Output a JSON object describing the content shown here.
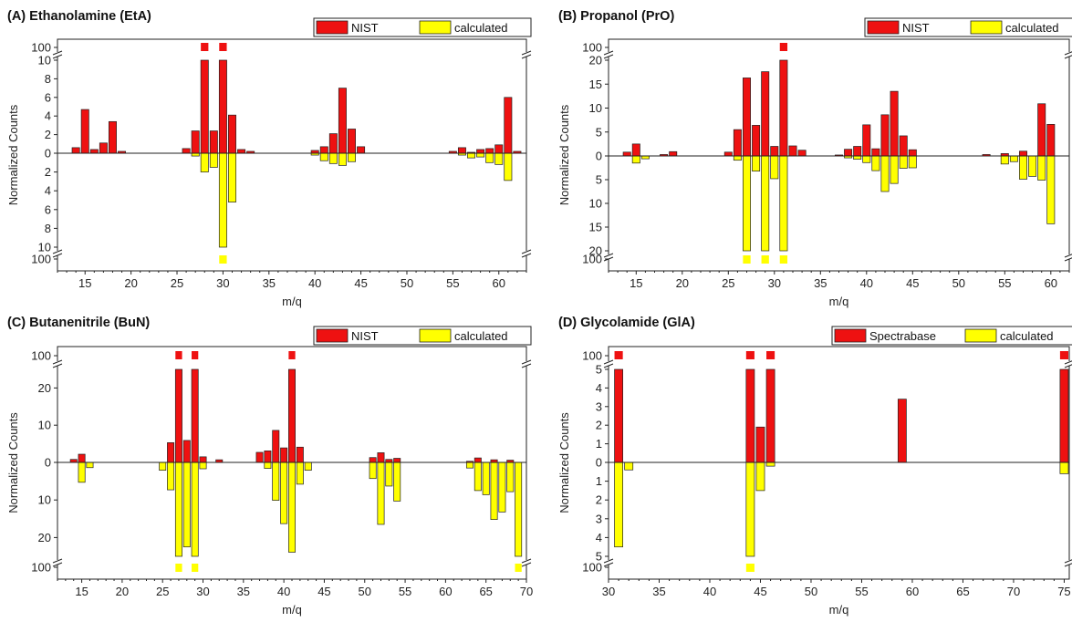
{
  "colors": {
    "nist": "#ee1111",
    "calculated": "#ffff00",
    "edge": "#222222"
  },
  "chart_data": [
    {
      "type": "bar",
      "panel": "A",
      "title": "(A) Ethanolamine (EtA)",
      "xlabel": "m/q",
      "ylabel": "Normalized Counts",
      "xlim": [
        12,
        63
      ],
      "xticks": [
        15,
        20,
        25,
        30,
        35,
        40,
        45,
        50,
        55,
        60
      ],
      "ylim_up": [
        0,
        10
      ],
      "ylim_down": [
        0,
        10
      ],
      "yticks_up": [
        0,
        2,
        4,
        6,
        8,
        10
      ],
      "yticks_down": [
        2,
        4,
        6,
        8,
        10
      ],
      "break_label": "100",
      "legend": [
        "NIST",
        "calculated"
      ],
      "series": [
        {
          "name": "NIST",
          "x": [
            14,
            15,
            16,
            17,
            18,
            19,
            26,
            27,
            28,
            29,
            30,
            31,
            32,
            33,
            40,
            41,
            42,
            43,
            44,
            45,
            55,
            56,
            57,
            58,
            59,
            60,
            61,
            62
          ],
          "values": [
            0.6,
            4.7,
            0.4,
            1.1,
            3.4,
            0.2,
            0.5,
            2.4,
            100,
            2.4,
            100,
            4.1,
            0.4,
            0.2,
            0.3,
            0.7,
            2.1,
            7.0,
            2.6,
            0.7,
            0.2,
            0.6,
            0.1,
            0.4,
            0.5,
            0.9,
            6.0,
            0.2
          ]
        },
        {
          "name": "calculated",
          "x": [
            27,
            28,
            29,
            30,
            31,
            40,
            41,
            42,
            43,
            44,
            56,
            57,
            58,
            59,
            60,
            61
          ],
          "values": [
            0.3,
            2.0,
            1.5,
            100,
            5.2,
            0.2,
            0.8,
            1.1,
            1.3,
            0.9,
            0.2,
            0.5,
            0.4,
            1.0,
            1.2,
            2.9
          ]
        }
      ]
    },
    {
      "type": "bar",
      "panel": "B",
      "title": "(B) Propanol (PrO)",
      "xlabel": "m/q",
      "ylabel": "Normalized Counts",
      "xlim": [
        12,
        62
      ],
      "xticks": [
        15,
        20,
        25,
        30,
        35,
        40,
        45,
        50,
        55,
        60
      ],
      "ylim_up": [
        0,
        20
      ],
      "ylim_down": [
        0,
        20
      ],
      "yticks_up": [
        0,
        5,
        10,
        15,
        20
      ],
      "yticks_down": [
        5,
        10,
        15,
        20
      ],
      "break_label": "100",
      "legend": [
        "NIST",
        "calculated"
      ],
      "series": [
        {
          "name": "NIST",
          "x": [
            14,
            15,
            18,
            19,
            25,
            26,
            27,
            28,
            29,
            30,
            31,
            32,
            33,
            37,
            38,
            39,
            40,
            41,
            42,
            43,
            44,
            45,
            53,
            55,
            57,
            59,
            60
          ],
          "values": [
            0.8,
            2.5,
            0.3,
            0.9,
            0.8,
            5.5,
            16.3,
            6.4,
            17.6,
            2.0,
            100,
            2.1,
            1.2,
            0.2,
            1.4,
            2.0,
            6.5,
            1.5,
            8.6,
            13.5,
            4.2,
            1.3,
            0.3,
            0.5,
            1.0,
            10.9,
            6.6
          ]
        },
        {
          "name": "calculated",
          "x": [
            15,
            16,
            26,
            27,
            28,
            29,
            30,
            31,
            38,
            39,
            40,
            41,
            42,
            43,
            44,
            45,
            55,
            56,
            57,
            58,
            59,
            60
          ],
          "values": [
            1.5,
            0.6,
            0.9,
            100,
            3.2,
            100,
            4.8,
            100,
            0.4,
            0.7,
            1.4,
            3.1,
            7.5,
            5.8,
            2.6,
            2.5,
            1.7,
            1.2,
            4.9,
            4.3,
            5.1,
            14.3
          ]
        }
      ]
    },
    {
      "type": "bar",
      "panel": "C",
      "title": "(C) Butanenitrile (BuN)",
      "xlabel": "m/q",
      "ylabel": "Normalized Counts",
      "xlim": [
        12,
        70
      ],
      "xticks": [
        15,
        20,
        25,
        30,
        35,
        40,
        45,
        50,
        55,
        60,
        65,
        70
      ],
      "ylim_up": [
        0,
        25
      ],
      "ylim_down": [
        0,
        25
      ],
      "yticks_up": [
        0,
        10,
        20
      ],
      "yticks_down": [
        10,
        20
      ],
      "break_label": "100",
      "legend": [
        "NIST",
        "calculated"
      ],
      "series": [
        {
          "name": "NIST",
          "x": [
            14,
            15,
            26,
            27,
            28,
            29,
            30,
            32,
            37,
            38,
            39,
            40,
            41,
            42,
            51,
            52,
            53,
            54,
            63,
            64,
            66,
            68
          ],
          "values": [
            0.8,
            2.2,
            5.3,
            100,
            5.9,
            100,
            1.5,
            0.7,
            2.7,
            3.1,
            8.6,
            3.9,
            100,
            4.1,
            1.3,
            2.6,
            0.8,
            1.1,
            0.3,
            1.2,
            0.7,
            0.6
          ]
        },
        {
          "name": "calculated",
          "x": [
            15,
            16,
            25,
            26,
            27,
            28,
            29,
            30,
            38,
            39,
            40,
            41,
            42,
            43,
            51,
            52,
            53,
            54,
            63,
            64,
            65,
            66,
            67,
            68,
            69
          ],
          "values": [
            5.3,
            1.4,
            2.1,
            7.3,
            100,
            22.5,
            100,
            1.7,
            1.6,
            10.1,
            16.3,
            23.9,
            5.8,
            2.1,
            4.3,
            16.5,
            6.3,
            10.3,
            1.5,
            7.5,
            8.6,
            15.2,
            13.2,
            7.8,
            100
          ]
        }
      ]
    },
    {
      "type": "bar",
      "panel": "D",
      "title": "(D) Glycolamide (GlA)",
      "xlabel": "m/q",
      "ylabel": "Normalized Counts",
      "xlim": [
        30,
        75.5
      ],
      "xticks": [
        30,
        35,
        40,
        45,
        50,
        55,
        60,
        65,
        70,
        75
      ],
      "ylim_up": [
        0,
        5
      ],
      "ylim_down": [
        0,
        5
      ],
      "yticks_up": [
        0,
        1,
        2,
        3,
        4,
        5
      ],
      "yticks_down": [
        1,
        2,
        3,
        4,
        5
      ],
      "break_label": "100",
      "legend": [
        "Spectrabase",
        "calculated"
      ],
      "series": [
        {
          "name": "Spectrabase",
          "x": [
            31,
            44,
            45,
            46,
            59,
            75
          ],
          "values": [
            100,
            100,
            1.9,
            100,
            3.4,
            100
          ]
        },
        {
          "name": "calculated",
          "x": [
            31,
            32,
            44,
            45,
            46,
            75
          ],
          "values": [
            4.5,
            0.4,
            100,
            1.5,
            0.2,
            0.6
          ]
        }
      ]
    }
  ]
}
